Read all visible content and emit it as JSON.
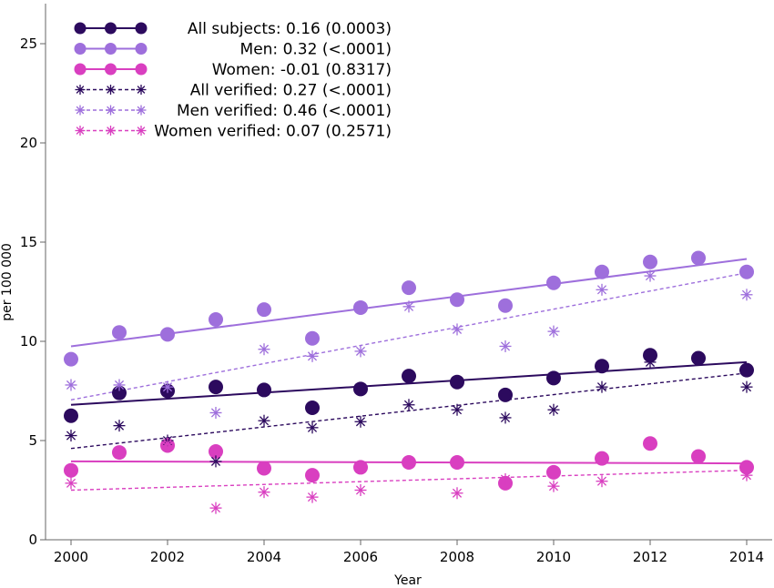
{
  "chart_data": {
    "type": "scatter",
    "xlabel": "Year",
    "ylabel": "per 100 000",
    "xlim": [
      2000,
      2014
    ],
    "ylim": [
      0,
      27
    ],
    "x_ticks": [
      2000,
      2002,
      2004,
      2006,
      2008,
      2010,
      2012,
      2014
    ],
    "y_ticks": [
      0,
      5,
      10,
      15,
      20,
      25
    ],
    "grid": false,
    "legend_position": "top-left",
    "colors": {
      "all": "#2c0a5e",
      "men": "#9e6fdc",
      "women": "#d93fc0"
    },
    "series": [
      {
        "name": "All subjects: 0.16 (0.0003)",
        "marker": "circle",
        "color_key": "all",
        "line_style": "solid",
        "x": [
          2000,
          2001,
          2002,
          2003,
          2004,
          2005,
          2006,
          2007,
          2008,
          2009,
          2010,
          2011,
          2012,
          2013,
          2014
        ],
        "y": [
          6.25,
          7.4,
          7.5,
          7.7,
          7.55,
          6.65,
          7.6,
          8.25,
          7.95,
          7.3,
          8.15,
          8.75,
          9.3,
          9.15,
          8.55
        ],
        "trend": [
          6.8,
          8.95
        ]
      },
      {
        "name": "Men: 0.32 (<.0001)",
        "marker": "circle",
        "color_key": "men",
        "line_style": "solid",
        "x": [
          2000,
          2001,
          2002,
          2003,
          2004,
          2005,
          2006,
          2007,
          2008,
          2009,
          2010,
          2011,
          2012,
          2013,
          2014
        ],
        "y": [
          9.1,
          10.45,
          10.35,
          11.1,
          11.6,
          10.15,
          11.7,
          12.7,
          12.1,
          11.8,
          12.95,
          13.5,
          14.0,
          14.2,
          13.5
        ],
        "trend": [
          9.75,
          14.15
        ]
      },
      {
        "name": "Women: -0.01 (0.8317)",
        "marker": "circle",
        "color_key": "women",
        "line_style": "solid",
        "x": [
          2000,
          2001,
          2002,
          2003,
          2004,
          2005,
          2006,
          2007,
          2008,
          2009,
          2010,
          2011,
          2012,
          2013,
          2014
        ],
        "y": [
          3.5,
          4.4,
          4.75,
          4.45,
          3.6,
          3.25,
          3.65,
          3.9,
          3.9,
          2.85,
          3.4,
          4.1,
          4.85,
          4.2,
          3.65
        ],
        "trend": [
          3.95,
          3.85
        ]
      },
      {
        "name": "All verified: 0.27 (<.0001)",
        "marker": "asterisk",
        "color_key": "all",
        "line_style": "dotted",
        "x": [
          2000,
          2001,
          2002,
          2003,
          2004,
          2005,
          2006,
          2007,
          2008,
          2009,
          2010,
          2011,
          2012,
          2013,
          2014
        ],
        "y": [
          5.25,
          5.75,
          5.0,
          3.95,
          6.0,
          5.65,
          5.95,
          6.8,
          6.55,
          6.15,
          6.55,
          7.7,
          8.95,
          9.1,
          7.7
        ],
        "trend": [
          4.6,
          8.4
        ]
      },
      {
        "name": "Men verified: 0.46 (<.0001)",
        "marker": "asterisk",
        "color_key": "men",
        "line_style": "dotted",
        "x": [
          2000,
          2001,
          2002,
          2003,
          2004,
          2005,
          2006,
          2007,
          2008,
          2009,
          2010,
          2011,
          2012,
          2013,
          2014
        ],
        "y": [
          7.8,
          7.8,
          7.7,
          6.4,
          9.6,
          9.25,
          9.5,
          11.75,
          10.6,
          9.75,
          10.5,
          12.6,
          13.3,
          14.2,
          12.35
        ],
        "trend": [
          7.05,
          13.45
        ]
      },
      {
        "name": "Women verified: 0.07 (0.2571)",
        "marker": "asterisk",
        "color_key": "women",
        "line_style": "dotted",
        "x": [
          2000,
          2001,
          2002,
          2003,
          2004,
          2005,
          2006,
          2007,
          2008,
          2009,
          2010,
          2011,
          2012,
          2013,
          2014
        ],
        "y": [
          2.85,
          4.45,
          4.85,
          1.6,
          2.4,
          2.15,
          2.5,
          3.9,
          2.35,
          3.05,
          2.7,
          2.95,
          4.85,
          4.2,
          3.25
        ],
        "trend": [
          2.5,
          3.5
        ]
      }
    ]
  }
}
